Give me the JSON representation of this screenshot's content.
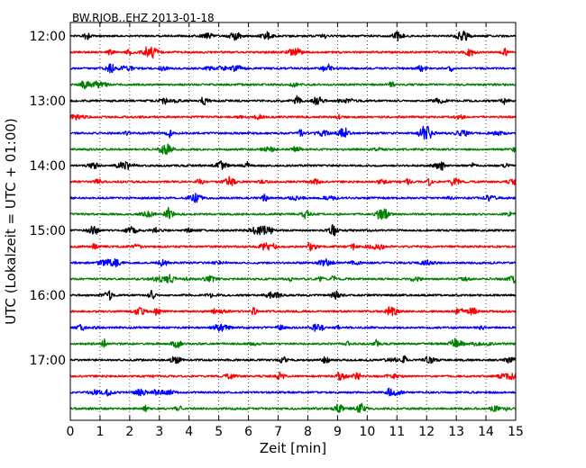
{
  "chart_data": {
    "type": "line",
    "title": "BW.RJOB..EHZ 2013-01-18",
    "xlabel": "Zeit  [min]",
    "ylabel": "UTC (Lokalzeit = UTC + 01:00)",
    "xlim": [
      0,
      15
    ],
    "x_ticks": [
      "0",
      "1",
      "2",
      "3",
      "4",
      "5",
      "6",
      "7",
      "8",
      "9",
      "10",
      "11",
      "12",
      "13",
      "14",
      "15"
    ],
    "y_ticks": [
      "12:00",
      "13:00",
      "14:00",
      "15:00",
      "16:00",
      "17:00"
    ],
    "grid": "vertical dotted",
    "colors": [
      "#000000",
      "#ff0000",
      "#0000ff",
      "#008000"
    ],
    "trace_start_times": [
      "12:00",
      "12:15",
      "12:30",
      "12:45",
      "13:00",
      "13:15",
      "13:30",
      "13:45",
      "14:00",
      "14:15",
      "14:30",
      "14:45",
      "15:00",
      "15:15",
      "15:30",
      "15:45",
      "16:00",
      "16:15",
      "16:30",
      "16:45",
      "17:00",
      "17:15",
      "17:30",
      "17:45"
    ],
    "trace_duration_min": 15
  }
}
